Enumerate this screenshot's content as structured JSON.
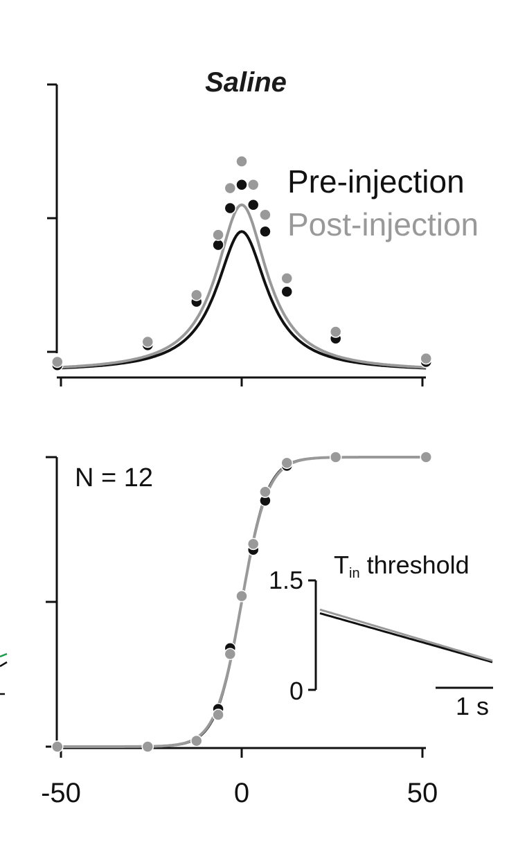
{
  "colors": {
    "pre": "#111111",
    "post": "#999999",
    "edge_stub_green": "#1a9a4a"
  },
  "chart_data": [
    {
      "type": "line",
      "panel": "top",
      "title": "Saline",
      "xlabel": "",
      "ylabel": "",
      "xlim": [
        -50,
        50
      ],
      "ylim": [
        0,
        4
      ],
      "x_ticks": [
        -50,
        0,
        50
      ],
      "y_ticks": [
        0,
        2,
        4
      ],
      "legend": [
        "Pre-injection",
        "Post-injection"
      ],
      "legend_position": "top-right",
      "series": [
        {
          "name": "Pre-injection",
          "points_x": [
            -51,
            -26,
            -12.5,
            -6.5,
            -3.2,
            0,
            3.2,
            6.5,
            12.5,
            26,
            51
          ],
          "points_y": [
            -0.2,
            0.1,
            0.75,
            1.6,
            2.15,
            2.5,
            2.2,
            1.8,
            0.9,
            0.2,
            -0.15
          ],
          "fit": {
            "form": "lorentzian",
            "peak": 2.1,
            "half_width": 8.5,
            "baseline": -0.3
          }
        },
        {
          "name": "Post-injection",
          "points_x": [
            -51,
            -26,
            -12.5,
            -6.5,
            -3.2,
            0,
            3.2,
            6.5,
            12.5,
            26,
            51
          ],
          "points_y": [
            -0.15,
            0.15,
            0.85,
            1.75,
            2.45,
            2.85,
            2.5,
            2.05,
            1.1,
            0.3,
            -0.1
          ],
          "fit": {
            "form": "lorentzian",
            "peak": 2.5,
            "half_width": 8.5,
            "baseline": -0.3
          }
        }
      ]
    },
    {
      "type": "line",
      "panel": "bottom",
      "title": "",
      "xlabel": "",
      "ylabel": "",
      "xlim": [
        -50,
        50
      ],
      "ylim": [
        0,
        1
      ],
      "x_ticks": [
        -50,
        0,
        50
      ],
      "x_tick_labels": [
        "-50",
        "0",
        "50"
      ],
      "y_ticks": [
        0,
        0.5,
        1
      ],
      "annotation": "N = 12",
      "series": [
        {
          "name": "Pre-injection",
          "points_x": [
            -51,
            -26,
            -12.5,
            -6.5,
            -3.2,
            0,
            3.2,
            6.5,
            12.5,
            26,
            51
          ],
          "points_y": [
            0,
            0,
            0.02,
            0.13,
            0.34,
            0.52,
            0.68,
            0.85,
            0.97,
            1,
            1
          ],
          "fit": {
            "form": "logistic",
            "x0": 0,
            "scale": 3.5
          }
        },
        {
          "name": "Post-injection",
          "points_x": [
            -51,
            -26,
            -12.5,
            -6.5,
            -3.2,
            0,
            3.2,
            6.5,
            12.5,
            26,
            51
          ],
          "points_y": [
            0,
            0,
            0.02,
            0.11,
            0.32,
            0.52,
            0.7,
            0.88,
            0.98,
            1,
            1
          ],
          "fit": {
            "form": "logistic",
            "x0": 0,
            "scale": 3.6
          }
        }
      ]
    },
    {
      "type": "line",
      "panel": "inset",
      "title": "Tin threshold",
      "title_main": "T",
      "title_sub": "in",
      "title_rest": " threshold",
      "ylim": [
        0,
        1.5
      ],
      "y_tick_labels": [
        "1.5",
        "0"
      ],
      "scale_bar_label": "1 s",
      "scale_bar_seconds": 1,
      "series": [
        {
          "name": "Pre-injection",
          "t": [
            0,
            3
          ],
          "y": [
            1.05,
            0.38
          ]
        },
        {
          "name": "Post-injection",
          "t": [
            0,
            3
          ],
          "y": [
            1.1,
            0.4
          ]
        }
      ]
    }
  ]
}
